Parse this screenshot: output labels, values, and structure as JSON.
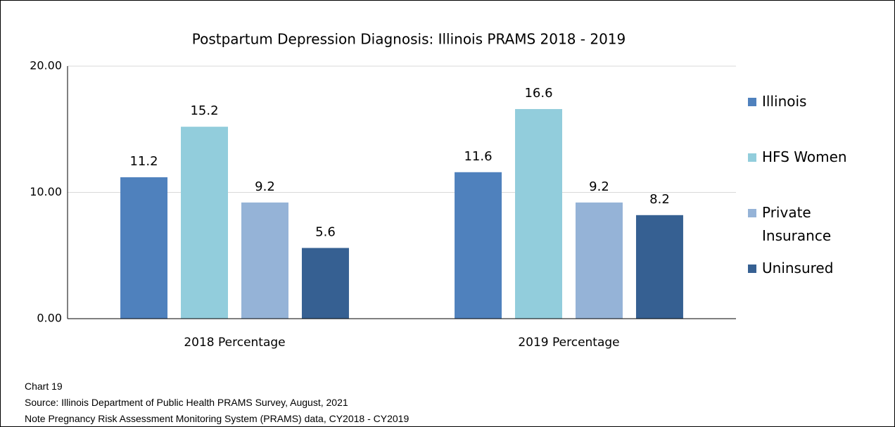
{
  "chart_data": {
    "type": "bar",
    "title": "Postpartum Depression Diagnosis: Illinois PRAMS 2018 - 2019",
    "categories": [
      "2018 Percentage",
      "2019 Percentage"
    ],
    "series": [
      {
        "name": "Illinois",
        "color": "#4f81bd",
        "values": [
          11.2,
          11.6
        ]
      },
      {
        "name": "HFS Women",
        "color": "#92cddc",
        "values": [
          15.2,
          16.6
        ]
      },
      {
        "name": "Private Insurance",
        "color": "#95b3d7",
        "values": [
          9.2,
          9.2
        ]
      },
      {
        "name": "Uninsured",
        "color": "#366092",
        "values": [
          5.6,
          8.2
        ]
      }
    ],
    "ylim": [
      0,
      20
    ],
    "yticks": [
      {
        "value": 0,
        "label": "0.00"
      },
      {
        "value": 10,
        "label": "10.00"
      },
      {
        "value": 20,
        "label": "20.00"
      }
    ],
    "grid": true,
    "legend": "right",
    "notes": [
      "Chart 19",
      "Source: Illinois Department of Public Health PRAMS Survey, August, 2021",
      "Note Pregnancy Risk Assessment Monitoring System (PRAMS) data, CY2018 - CY2019"
    ]
  }
}
